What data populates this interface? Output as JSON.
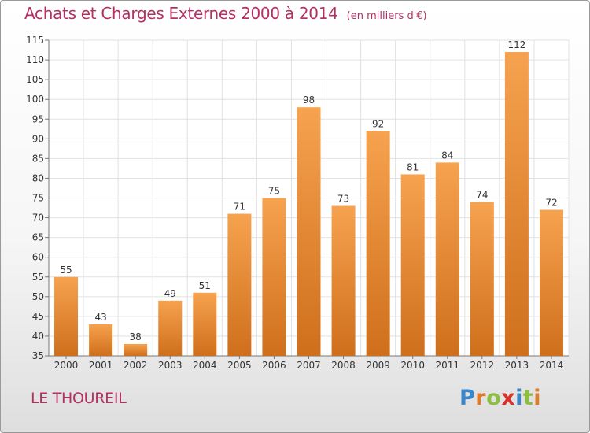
{
  "header": {
    "title": "Achats et Charges Externes 2000 à 2014",
    "unit": "(en milliers d'€)"
  },
  "commune": "LE THOUREIL",
  "logo": {
    "letters": [
      {
        "char": "P",
        "color": "#3a86c8"
      },
      {
        "char": "r",
        "color": "#e07b2a"
      },
      {
        "char": "o",
        "color": "#8cbf3f"
      },
      {
        "char": "x",
        "color": "#d6342b"
      },
      {
        "char": "i",
        "color": "#3a86c8"
      },
      {
        "char": "t",
        "color": "#8cbf3f"
      },
      {
        "char": "i",
        "color": "#e07b2a"
      }
    ]
  },
  "chart_data": {
    "type": "bar",
    "title": "Achats et Charges Externes 2000 à 2014",
    "subtitle": "(en milliers d'€)",
    "categories": [
      "2000",
      "2001",
      "2002",
      "2003",
      "2004",
      "2005",
      "2006",
      "2007",
      "2008",
      "2009",
      "2010",
      "2011",
      "2012",
      "2013",
      "2014"
    ],
    "values": [
      55,
      43,
      38,
      49,
      51,
      71,
      75,
      98,
      73,
      92,
      81,
      84,
      74,
      112,
      72
    ],
    "ylim": [
      35,
      115
    ],
    "yticks": [
      35,
      40,
      45,
      50,
      55,
      60,
      65,
      70,
      75,
      80,
      85,
      90,
      95,
      100,
      105,
      110,
      115
    ],
    "grid": true,
    "legend": "none",
    "bar_color_light": "#f6a24f",
    "bar_color_dark": "#cf6f1c",
    "grid_color": "#e2e2e2"
  }
}
